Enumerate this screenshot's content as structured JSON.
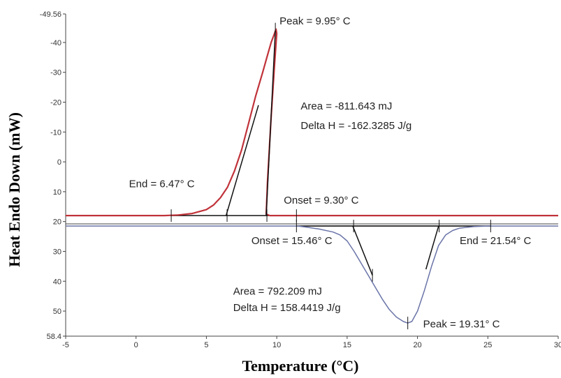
{
  "chart_data": {
    "type": "line",
    "xlabel": "Temperature (°C)",
    "ylabel": "Heat Endo Down (mW)",
    "xlim": [
      -5,
      30
    ],
    "ylim": [
      -49.56,
      58.4
    ],
    "x_ticks": [
      {
        "value": -5,
        "label": "-5"
      },
      {
        "value": 0,
        "label": "0"
      },
      {
        "value": 5,
        "label": "5"
      },
      {
        "value": 10,
        "label": "10"
      },
      {
        "value": 15,
        "label": "15"
      },
      {
        "value": 20,
        "label": "20"
      },
      {
        "value": 25,
        "label": "25"
      },
      {
        "value": 30,
        "label": "30"
      }
    ],
    "y_ticks": [
      {
        "value": -49.56,
        "label": "-49.56"
      },
      {
        "value": -40,
        "label": "-40"
      },
      {
        "value": -30,
        "label": "-30"
      },
      {
        "value": -20,
        "label": "-20"
      },
      {
        "value": -10,
        "label": "-10"
      },
      {
        "value": 0,
        "label": "0"
      },
      {
        "value": 10,
        "label": "10"
      },
      {
        "value": 20,
        "label": "20"
      },
      {
        "value": 30,
        "label": "30"
      },
      {
        "value": 40,
        "label": "40"
      },
      {
        "value": 50,
        "label": "50"
      },
      {
        "value": 58.4,
        "label": "58.4"
      }
    ],
    "grid": false,
    "series": [
      {
        "color": "#c0333a",
        "x": [
          -5,
          2,
          3,
          4,
          5,
          5.5,
          6,
          6.5,
          7,
          7.5,
          8,
          8.5,
          9,
          9.3,
          9.6,
          9.8,
          9.95,
          10.0,
          9.85,
          9.6,
          9.35,
          9.25,
          9.5,
          10,
          11,
          12,
          15,
          20,
          25,
          30
        ],
        "y": [
          18,
          18,
          17.8,
          17.3,
          16,
          14.5,
          12,
          8.5,
          3,
          -4,
          -13,
          -22,
          -30,
          -35,
          -40,
          -42.5,
          -44.5,
          -43,
          -33,
          -15,
          6,
          17.5,
          18,
          18,
          18,
          18,
          18,
          18,
          18,
          18
        ]
      },
      {
        "color": "#6a74a8",
        "x": [
          -5,
          2,
          5,
          8,
          10,
          11,
          11.5,
          12,
          13,
          14,
          14.5,
          15,
          15.5,
          16,
          16.5,
          17,
          17.5,
          18,
          18.5,
          19,
          19.3,
          19.6,
          20,
          20.5,
          21,
          21.5,
          22,
          22.5,
          23,
          24,
          25,
          30
        ],
        "y": [
          21.5,
          21.5,
          21.5,
          21.5,
          21.5,
          21.5,
          21.5,
          21.8,
          22.5,
          23.5,
          24.5,
          26.5,
          30,
          34,
          38,
          42,
          46,
          49.5,
          52,
          53.5,
          54,
          53.5,
          50,
          43,
          35,
          28,
          24.5,
          23,
          22.2,
          21.7,
          21.5,
          21.5
        ]
      }
    ],
    "tangent_lines": [
      {
        "x": [
          6.4,
          8.7
        ],
        "y": [
          18,
          -19
        ]
      },
      {
        "x": [
          9.25,
          9.9
        ],
        "y": [
          18,
          -44
        ]
      },
      {
        "x": [
          15.4,
          16.8
        ],
        "y": [
          21.5,
          38
        ]
      },
      {
        "x": [
          20.6,
          21.5
        ],
        "y": [
          36,
          21.5
        ]
      }
    ],
    "baselines": [
      {
        "x": [
          2.5,
          11.4
        ],
        "y": [
          18,
          18
        ]
      },
      {
        "x": [
          11.4,
          25.2
        ],
        "y": [
          21.5,
          21.5
        ]
      }
    ],
    "markers": [
      {
        "x": 2.5,
        "y": 18
      },
      {
        "x": 6.47,
        "y": 18
      },
      {
        "x": 9.3,
        "y": 18
      },
      {
        "x": 11.4,
        "y": 18
      },
      {
        "x": 9.9,
        "y": -44.5
      },
      {
        "x": 11.4,
        "y": 21.5
      },
      {
        "x": 15.46,
        "y": 21.5
      },
      {
        "x": 21.54,
        "y": 21.5
      },
      {
        "x": 25.2,
        "y": 21.5
      },
      {
        "x": 16.8,
        "y": 38
      },
      {
        "x": 19.31,
        "y": 54
      }
    ],
    "annotations": [
      {
        "text": "Peak = 9.95° C",
        "x": 10.2,
        "y": -46
      },
      {
        "text": "Area = -811.643 mJ",
        "x": 11.7,
        "y": -17.5
      },
      {
        "text": "Delta H = -162.3285 J/g",
        "x": 11.7,
        "y": -11
      },
      {
        "text": "End = 6.47° C",
        "x": -0.5,
        "y": 8.5
      },
      {
        "text": "Onset = 9.30° C",
        "x": 10.5,
        "y": 14
      },
      {
        "text": "Onset = 15.46° C",
        "x": 8.2,
        "y": 27.5
      },
      {
        "text": "End = 21.54° C",
        "x": 23,
        "y": 27.5
      },
      {
        "text": "Area = 792.209 mJ",
        "x": 6.9,
        "y": 44.5
      },
      {
        "text": "Delta H = 158.4419 J/g",
        "x": 6.9,
        "y": 50
      },
      {
        "text": "Peak = 19.31° C",
        "x": 20.4,
        "y": 55.5
      }
    ]
  }
}
